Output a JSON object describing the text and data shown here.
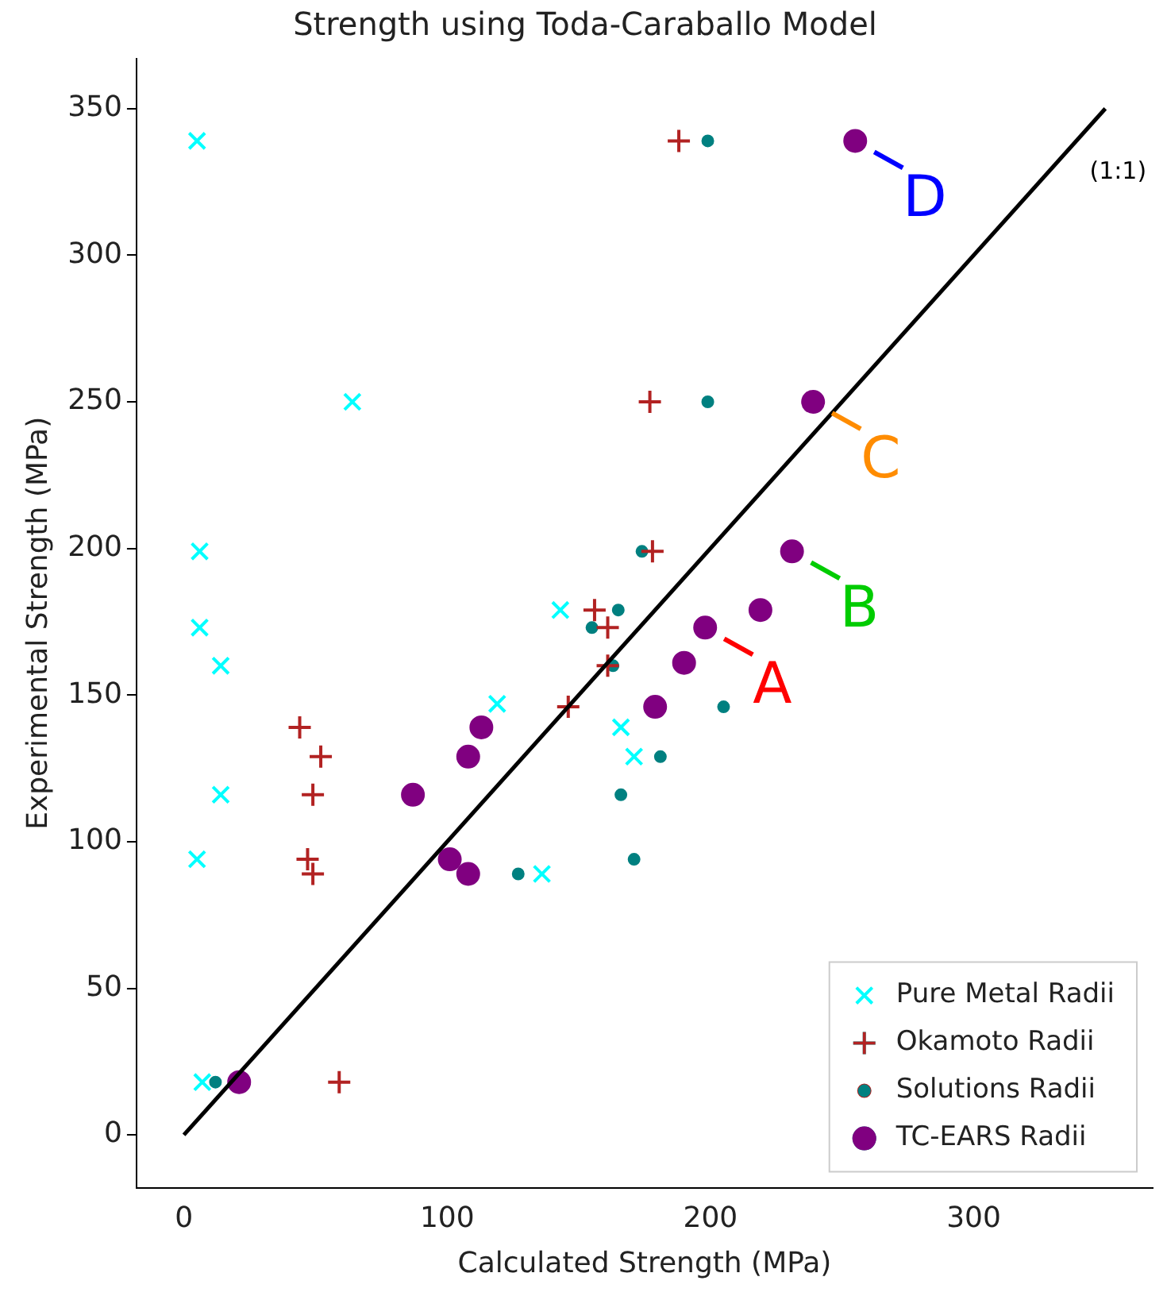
{
  "chart_data": {
    "type": "scatter",
    "title": "Strength using Toda-Caraballo Model",
    "xlabel": "Calculated Strength (MPa)",
    "ylabel": "Experimental Strength (MPa)",
    "xlim": [
      -18,
      368
    ],
    "ylim": [
      -18,
      367
    ],
    "xticks": [
      0,
      100,
      200,
      300
    ],
    "yticks": [
      0,
      50,
      100,
      150,
      200,
      250,
      300,
      350
    ],
    "grid": false,
    "legend": "bottom right",
    "series": [
      {
        "name": "Pure Metal Radii",
        "color": "#00ffff",
        "marker": "x",
        "x": [
          5,
          64,
          6,
          6,
          14,
          119,
          14,
          5,
          136,
          143,
          166,
          171,
          7
        ],
        "values": [
          339,
          250,
          199,
          173,
          160,
          147,
          116,
          94,
          89,
          179,
          139,
          129,
          18
        ]
      },
      {
        "name": "Okamoto Radii",
        "color": "#b22222",
        "marker": "cross",
        "x": [
          188,
          177,
          178,
          156,
          161,
          161,
          146,
          44,
          52,
          49,
          47,
          49,
          59
        ],
        "values": [
          339,
          250,
          199,
          179,
          173,
          160,
          146,
          139,
          129,
          116,
          94,
          89,
          18
        ]
      },
      {
        "name": "Solutions Radii",
        "color": "#008080",
        "marker": "circle",
        "x": [
          199,
          199,
          174,
          165,
          155,
          163,
          205,
          181,
          166,
          171,
          127,
          12
        ],
        "values": [
          339,
          250,
          199,
          179,
          173,
          160,
          146,
          129,
          116,
          94,
          89,
          18
        ]
      },
      {
        "name": "TC-EARS Radii",
        "color": "#800080",
        "marker": "circle",
        "x": [
          255,
          239,
          231,
          219,
          198,
          190,
          179,
          113,
          108,
          87,
          101,
          108,
          21
        ],
        "values": [
          339,
          250,
          199,
          179,
          173,
          161,
          146,
          139,
          129,
          116,
          94,
          89,
          18
        ]
      },
      {
        "name": "(1:1)",
        "type": "line",
        "color": "#000000",
        "marker": "none",
        "x": [
          0,
          350
        ],
        "values": [
          0,
          350
        ]
      }
    ],
    "annotations": [
      {
        "text": "A",
        "x": 198,
        "y": 173
      },
      {
        "text": "B",
        "x": 231,
        "y": 199
      },
      {
        "text": "C",
        "x": 239,
        "y": 250
      },
      {
        "text": "D",
        "x": 255,
        "y": 339
      }
    ]
  }
}
